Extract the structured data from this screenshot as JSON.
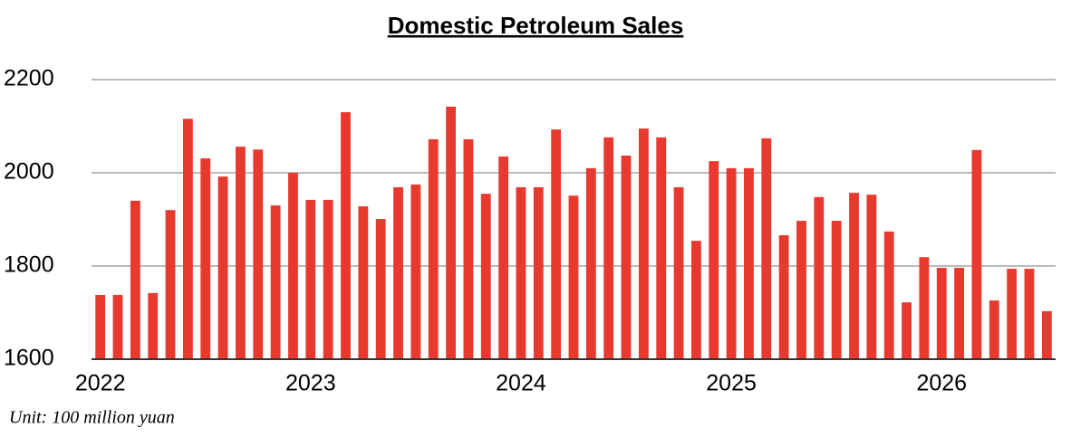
{
  "chart_data": {
    "type": "bar",
    "title": "Domestic Petroleum Sales",
    "note": "Unit: 100 million yuan",
    "categories": [
      "2022",
      null,
      null,
      null,
      null,
      null,
      null,
      null,
      null,
      null,
      null,
      null,
      "2023",
      null,
      null,
      null,
      null,
      null,
      null,
      null,
      null,
      null,
      null,
      null,
      "2024",
      null,
      null,
      null,
      null,
      null,
      null,
      null,
      null,
      null,
      null,
      null,
      "2025",
      null,
      null,
      null,
      null,
      null,
      null,
      null,
      null,
      null,
      null,
      null,
      "2026",
      null,
      null,
      null,
      null,
      null,
      null
    ],
    "values": [
      1738,
      1738,
      1940,
      1742,
      1920,
      2116,
      2031,
      1992,
      2056,
      2050,
      1930,
      2000,
      1942,
      1942,
      2130,
      1928,
      1901,
      1969,
      1975,
      2072,
      2142,
      2072,
      1955,
      2035,
      1969,
      1969,
      2093,
      1951,
      2010,
      2076,
      2037,
      2095,
      2076,
      1969,
      1854,
      2025,
      2010,
      2010,
      2074,
      1866,
      1897,
      1948,
      1897,
      1957,
      1953,
      1874,
      1722,
      1819,
      1796,
      1796,
      2049,
      1726,
      1794,
      1794,
      1703
    ],
    "color": "#e8392f",
    "ylim": [
      1600,
      2200
    ],
    "yticks": [
      1600,
      1800,
      2000,
      2200
    ],
    "grid": true
  }
}
